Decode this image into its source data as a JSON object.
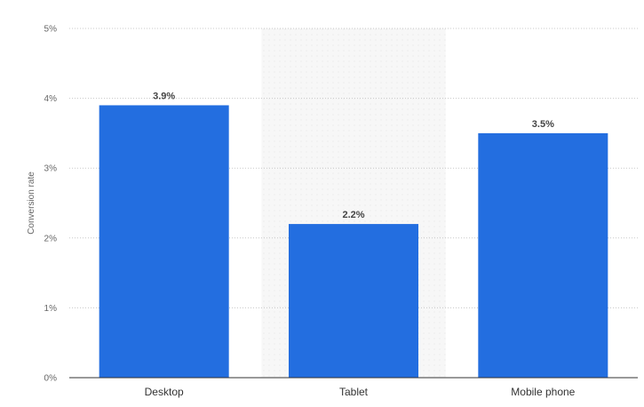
{
  "chart_data": {
    "type": "bar",
    "categories": [
      "Desktop",
      "Tablet",
      "Mobile phone"
    ],
    "values": [
      3.9,
      2.2,
      3.5
    ],
    "data_labels": [
      "3.9%",
      "2.2%",
      "3.5%"
    ],
    "title": "",
    "xlabel": "",
    "ylabel": "Conversion rate",
    "ylim": [
      0,
      5
    ],
    "yticks": [
      0,
      1,
      2,
      3,
      4,
      5
    ],
    "ytick_labels": [
      "0%",
      "1%",
      "2%",
      "3%",
      "4%",
      "5%"
    ],
    "grid": true,
    "grid_style": "dotted",
    "highlighted_category": "Tablet",
    "bar_color": "#236ee0",
    "highlight_band_color": "#f5f5f5",
    "legend": false
  }
}
